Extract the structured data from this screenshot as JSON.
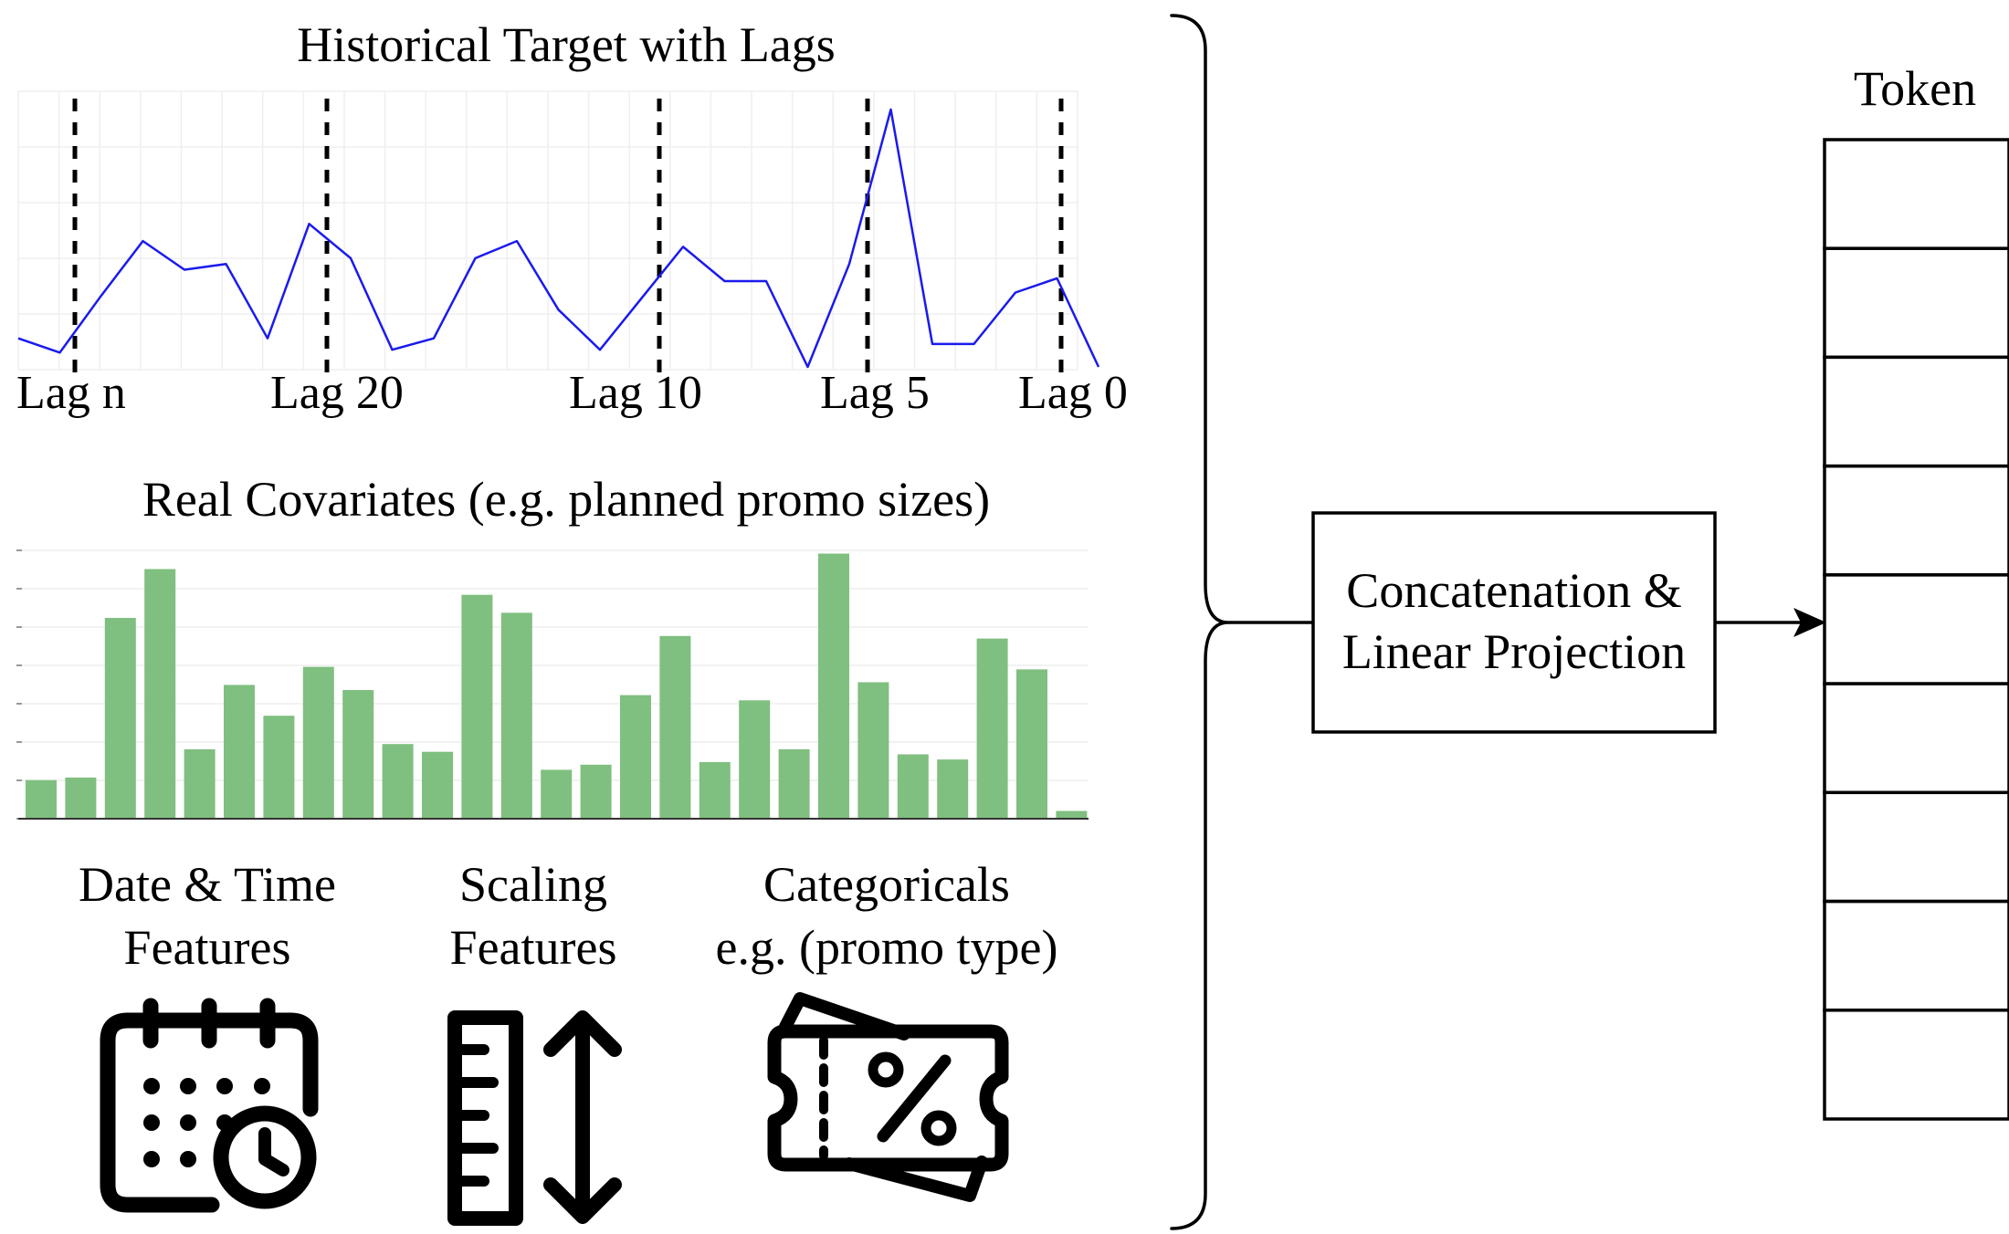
{
  "diagram": {
    "lag_chart": {
      "title": "Historical Target with Lags",
      "lag_labels": [
        "Lag n",
        "Lag 20",
        "Lag 10",
        "Lag 5",
        "Lag 0"
      ],
      "series": [
        0.1,
        0.05,
        0.25,
        0.44,
        0.34,
        0.36,
        0.1,
        0.5,
        0.38,
        0.06,
        0.1,
        0.38,
        0.44,
        0.2,
        0.06,
        0.24,
        0.42,
        0.3,
        0.3,
        0.0,
        0.36,
        0.9,
        0.08,
        0.08,
        0.26,
        0.31,
        0.0
      ],
      "line_color": "#1a1aee"
    },
    "covariate_chart": {
      "title": "Real Covariates (e.g. planned promo sizes)",
      "values": [
        0.15,
        0.16,
        0.78,
        0.97,
        0.27,
        0.52,
        0.4,
        0.59,
        0.5,
        0.29,
        0.26,
        0.87,
        0.8,
        0.19,
        0.21,
        0.48,
        0.71,
        0.22,
        0.46,
        0.27,
        1.03,
        0.53,
        0.25,
        0.23,
        0.7,
        0.58,
        0.03
      ],
      "bar_color": "#7fbf7f"
    },
    "features": [
      {
        "line1": "Date & Time",
        "line2": "Features",
        "icon": "calendar-clock-icon"
      },
      {
        "line1": "Scaling",
        "line2": "Features",
        "icon": "ruler-scale-icon"
      },
      {
        "line1": "Categoricals",
        "line2": "e.g. (promo type)",
        "icon": "discount-ticket-icon"
      }
    ],
    "projection_box": {
      "line1": "Concatenation &",
      "line2": "Linear Projection"
    },
    "token": {
      "label": "Token",
      "cells": 9
    }
  }
}
